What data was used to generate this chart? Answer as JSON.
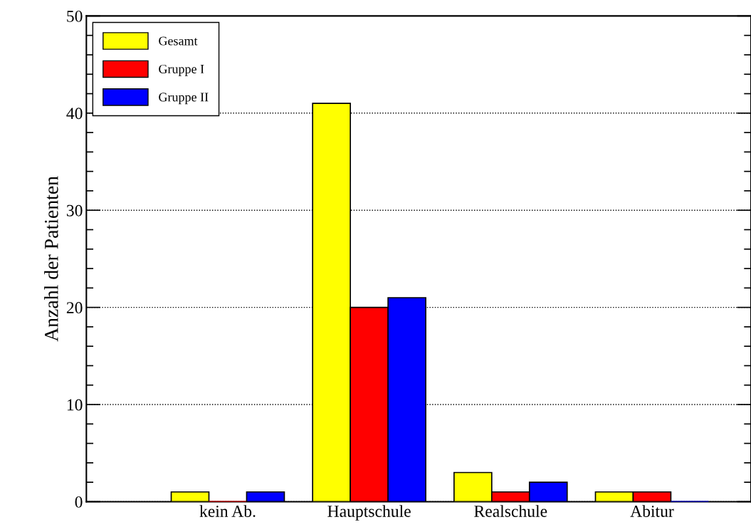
{
  "chart_data": {
    "type": "bar",
    "ylabel": "Anzahl der Patienten",
    "categories": [
      "kein Ab.",
      "Hauptschule",
      "Realschule",
      "Abitur"
    ],
    "series": [
      {
        "name": "Gesamt",
        "color": "#ffff00",
        "values": [
          1,
          41,
          3,
          1
        ]
      },
      {
        "name": "Gruppe I",
        "color": "#ff0000",
        "values": [
          0,
          20,
          1,
          1
        ]
      },
      {
        "name": "Gruppe II",
        "color": "#0000ff",
        "values": [
          1,
          21,
          2,
          0
        ]
      }
    ],
    "ylim": [
      0,
      50
    ],
    "yticks": [
      0,
      10,
      20,
      30,
      40,
      50
    ],
    "grid": "y",
    "legend": "top left"
  }
}
